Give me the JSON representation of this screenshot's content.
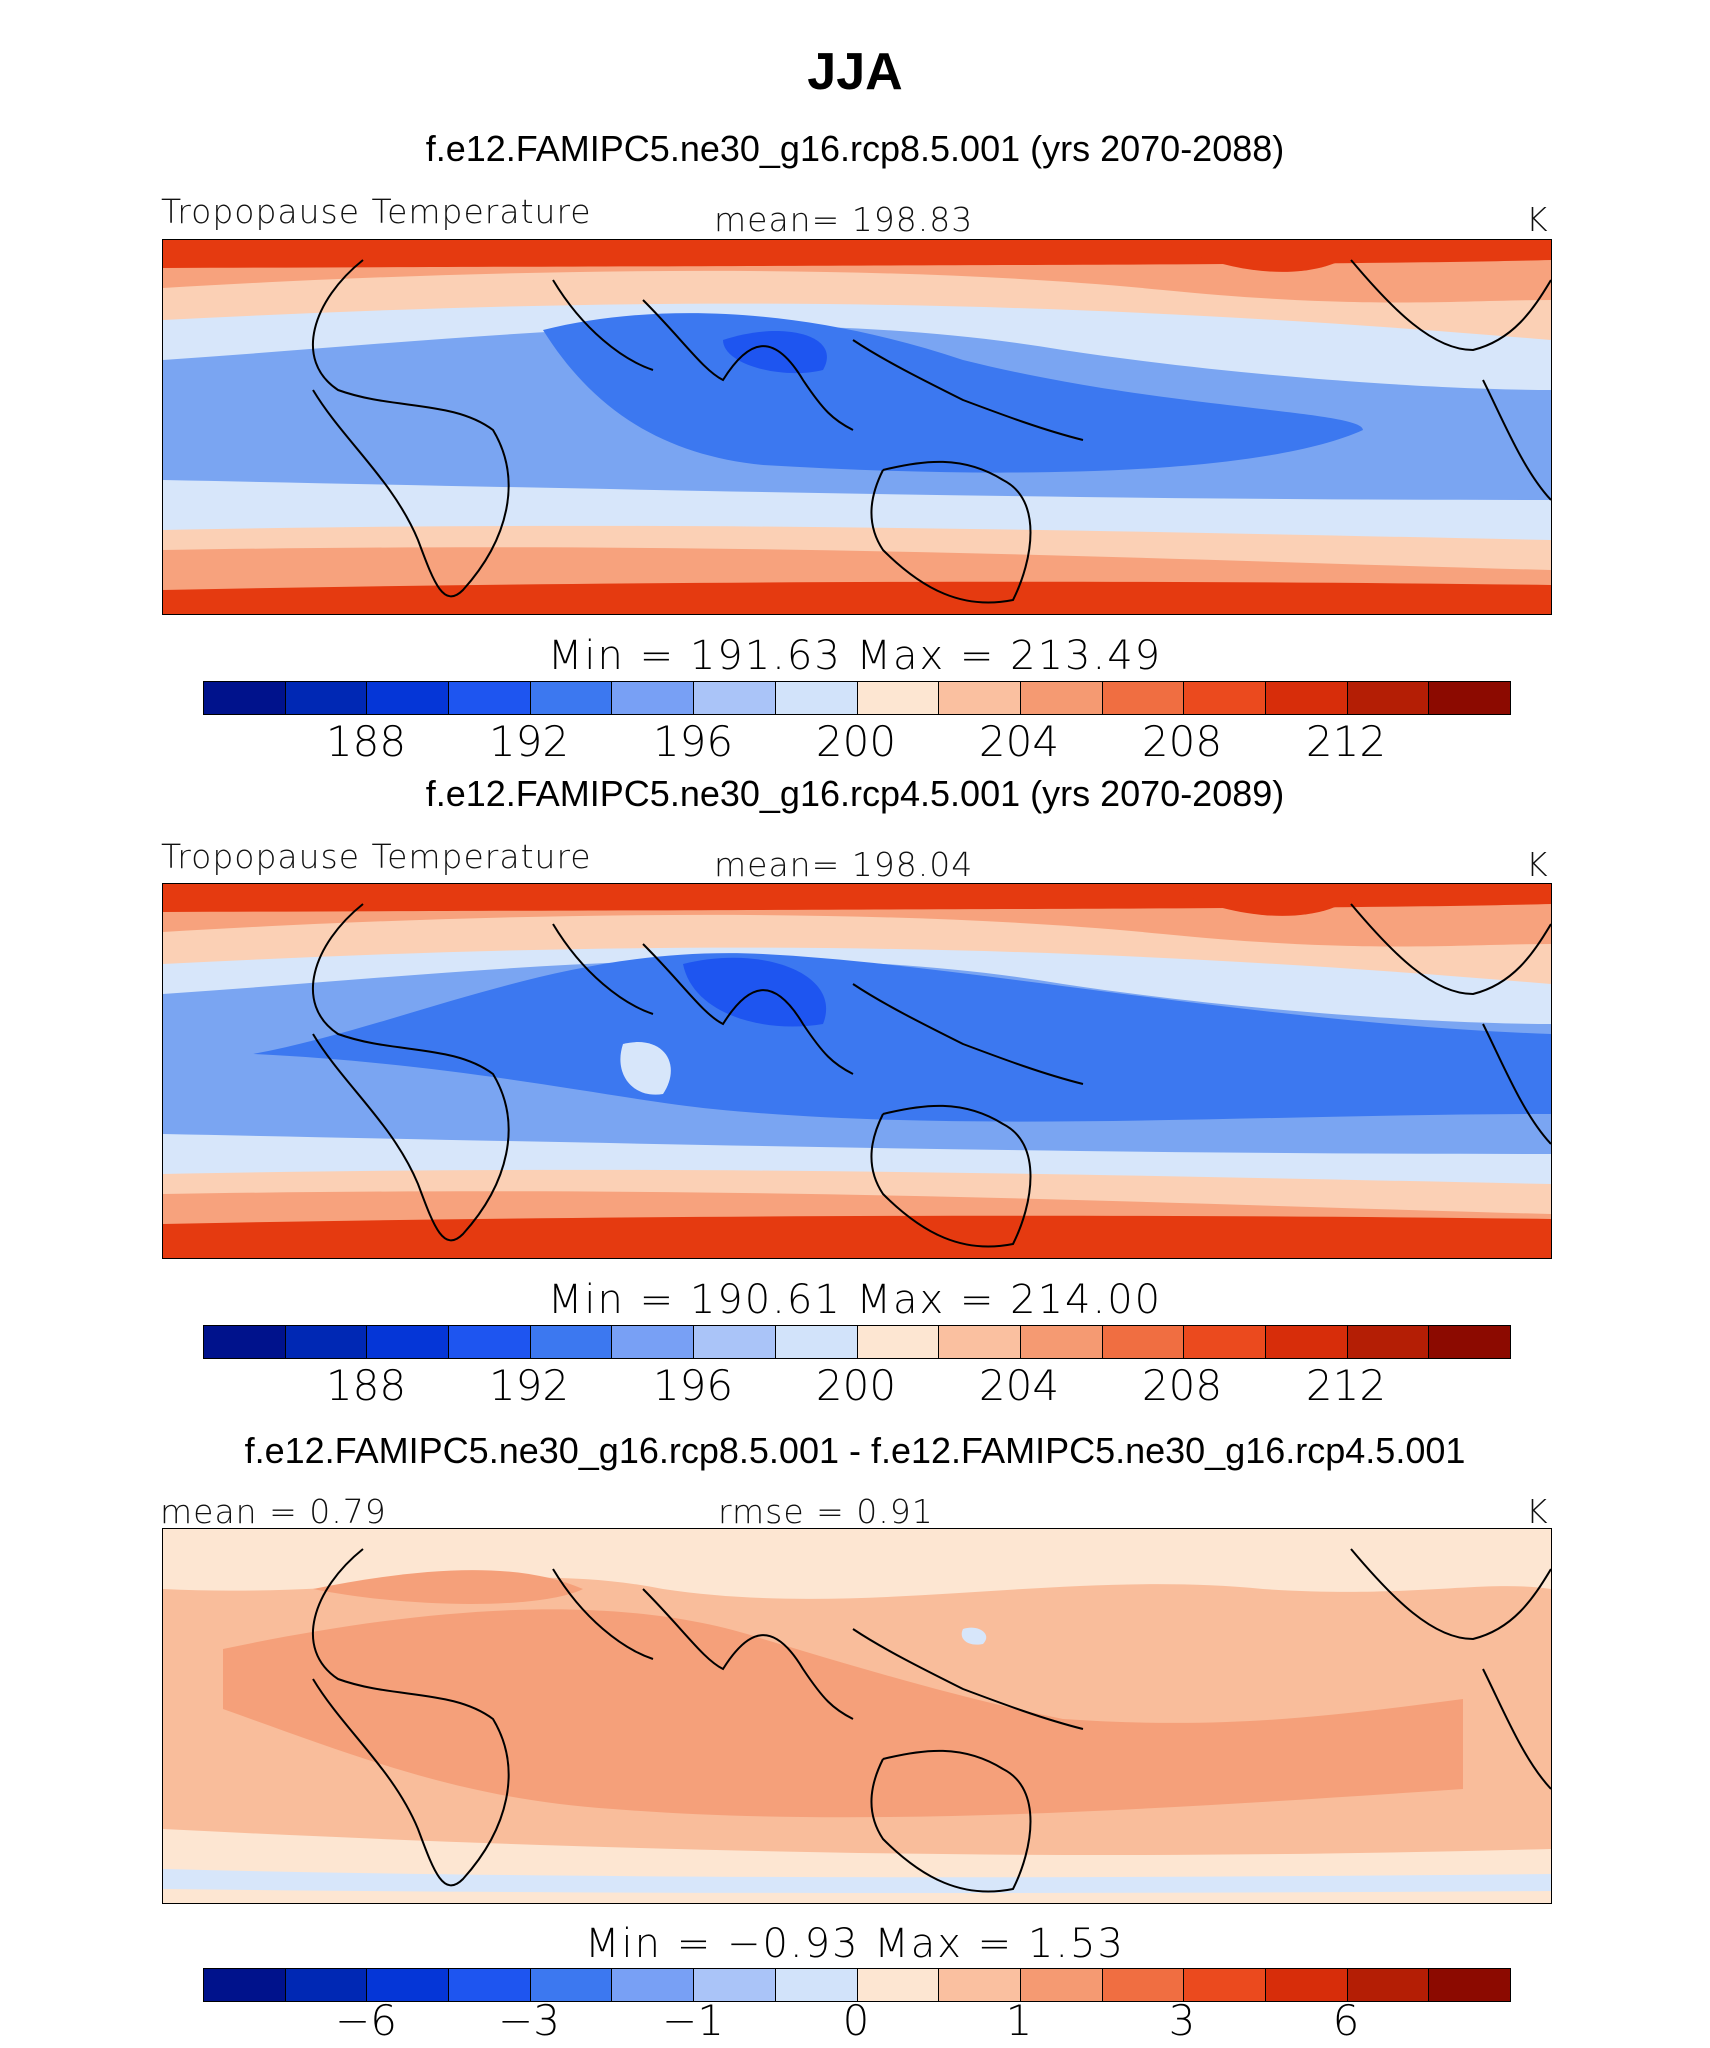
{
  "title": "JJA",
  "colors": [
    "#00128c",
    "#0028b4",
    "#0536d7",
    "#1e55f0",
    "#3c78f0",
    "#78a0f5",
    "#aac4f8",
    "#d2e3fa",
    "#fde6d2",
    "#fac0a0",
    "#f59a72",
    "#f06e41",
    "#eb4a1e",
    "#d72d0a",
    "#b41e05",
    "#8c0a00"
  ],
  "map_colors": {
    "polar": "#e53a10",
    "subtrop": "#f7a27d",
    "mid": "#fbd0b5",
    "band": "#d7e6fa",
    "tropic": "#7aa5f2",
    "deep": "#3c78f0",
    "core": "#1e55f0",
    "diff_bg": "#fde6d2",
    "diff_warm": "#f9bd9b",
    "diff_warmer": "#f5a07a",
    "diff_cool": "#d7e6fa"
  },
  "panels": [
    {
      "case": "f.e12.FAMIPC5.ne30_g16.rcp8.5.001 (yrs 2070-2088)",
      "left_label": "Tropopause Temperature",
      "center_label": "mean=  198.83",
      "units": "K",
      "minmax": "Min  =  191.63  Max  =  213.49",
      "ticks": [
        "188",
        "192",
        "196",
        "200",
        "204",
        "208",
        "212"
      ]
    },
    {
      "case": "f.e12.FAMIPC5.ne30_g16.rcp4.5.001 (yrs 2070-2089)",
      "left_label": "Tropopause Temperature",
      "center_label": "mean=  198.04",
      "units": "K",
      "minmax": "Min  =  190.61  Max  =  214.00",
      "ticks": [
        "188",
        "192",
        "196",
        "200",
        "204",
        "208",
        "212"
      ]
    },
    {
      "case": "f.e12.FAMIPC5.ne30_g16.rcp8.5.001 - f.e12.FAMIPC5.ne30_g16.rcp4.5.001",
      "left_label": "mean  =     0.79",
      "center_label": "rmse  =     0.91",
      "units": "K",
      "minmax": "Min  =    −0.93  Max  =      1.53",
      "ticks": [
        "−6",
        "−3",
        "−1",
        "0",
        "1",
        "3",
        "6"
      ]
    }
  ]
}
